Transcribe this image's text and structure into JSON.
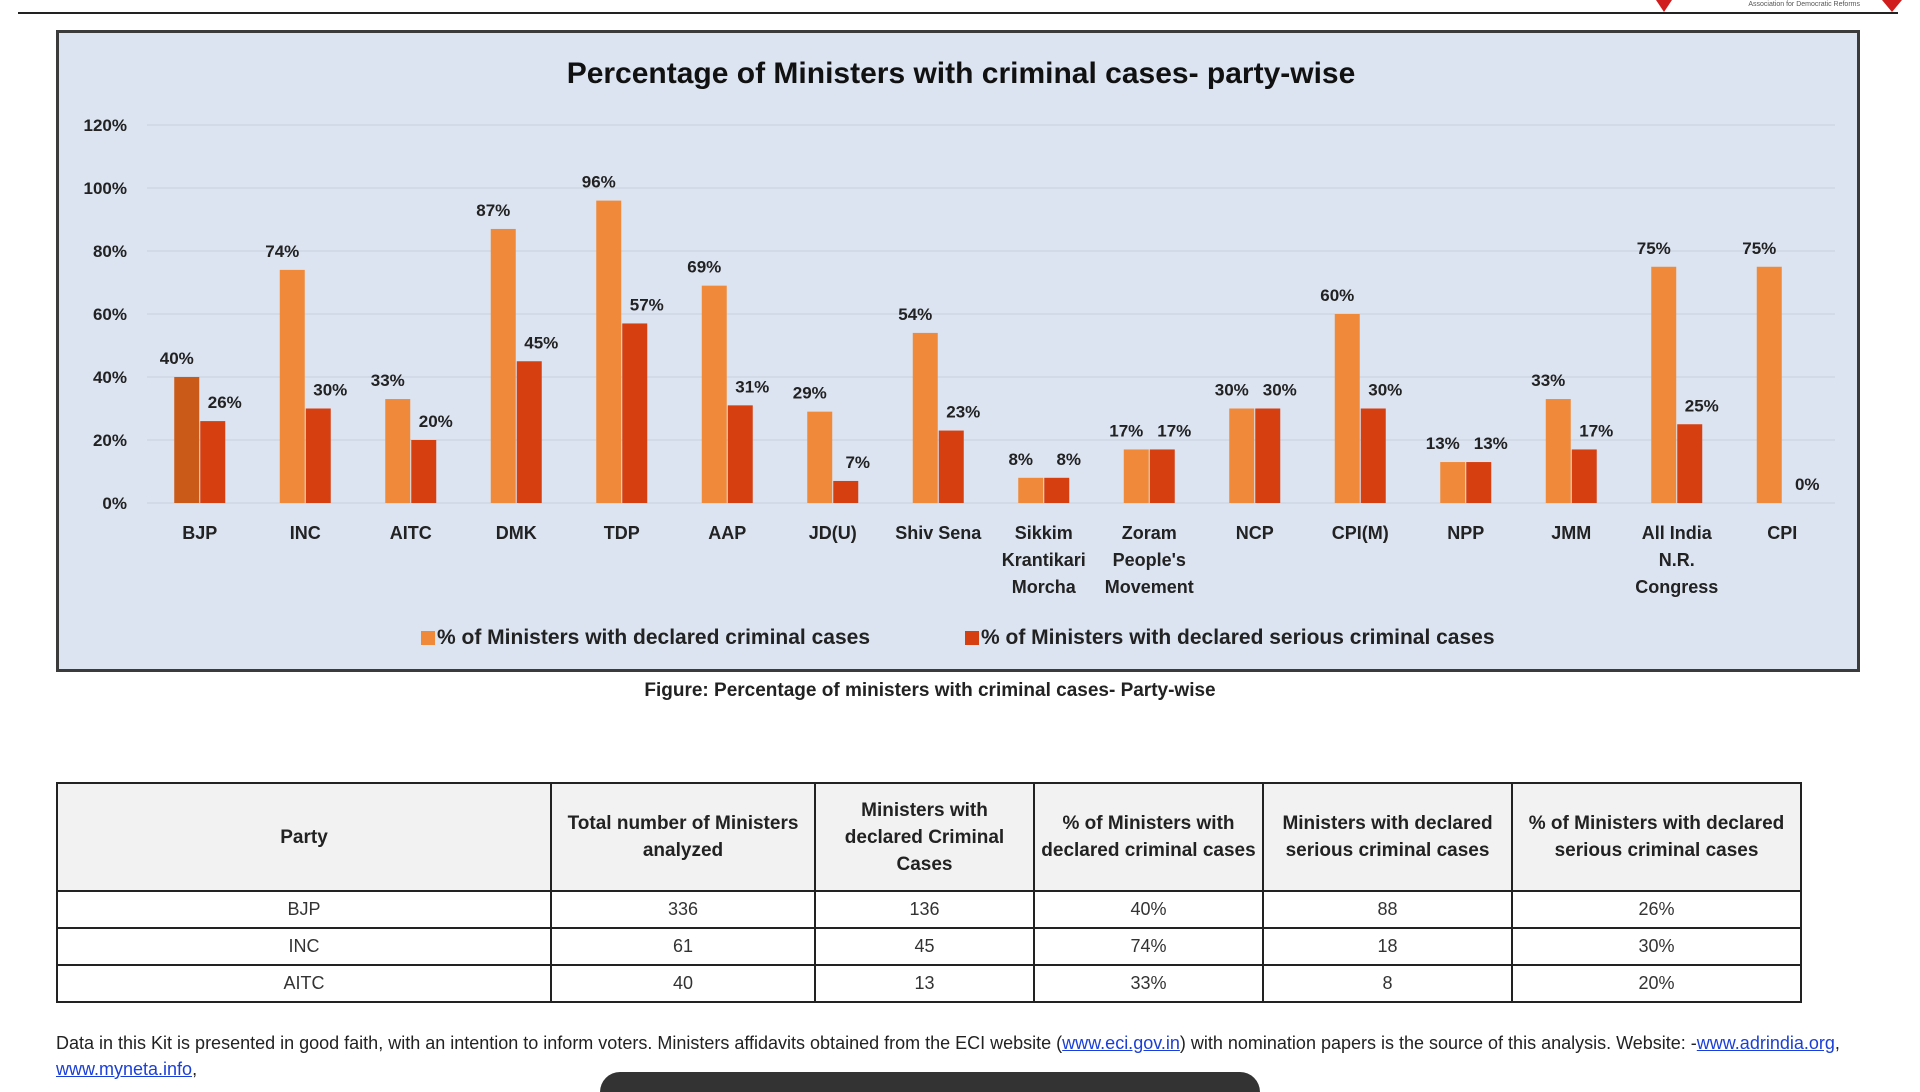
{
  "logo": {
    "text": "Association for Democratic Reforms"
  },
  "chart_data": {
    "type": "bar",
    "title": "Percentage of Ministers with criminal cases- party-wise",
    "categories": [
      "BJP",
      "INC",
      "AITC",
      "DMK",
      "TDP",
      "AAP",
      "JD(U)",
      "Shiv Sena",
      "Sikkim Krantikari Morcha",
      "Zoram People's Movement",
      "NCP",
      "CPI(M)",
      "NPP",
      "JMM",
      "All India N.R. Congress",
      "CPI"
    ],
    "category_lines": [
      [
        "BJP"
      ],
      [
        "INC"
      ],
      [
        "AITC"
      ],
      [
        "DMK"
      ],
      [
        "TDP"
      ],
      [
        "AAP"
      ],
      [
        "JD(U)"
      ],
      [
        "Shiv Sena"
      ],
      [
        "Sikkim",
        "Krantikari",
        "Morcha"
      ],
      [
        "Zoram",
        "People's",
        "Movement"
      ],
      [
        "NCP"
      ],
      [
        "CPI(M)"
      ],
      [
        "NPP"
      ],
      [
        "JMM"
      ],
      [
        "All India",
        "N.R.",
        "Congress"
      ],
      [
        "CPI"
      ]
    ],
    "series": [
      {
        "name": "% of Ministers with declared criminal cases",
        "values": [
          40,
          74,
          33,
          87,
          96,
          69,
          29,
          54,
          8,
          17,
          30,
          60,
          13,
          33,
          75,
          75
        ],
        "color": "#f0893a"
      },
      {
        "name": "% of Ministers with declared serious criminal cases",
        "values": [
          26,
          30,
          20,
          45,
          57,
          31,
          7,
          23,
          8,
          17,
          30,
          30,
          13,
          17,
          25,
          0
        ],
        "color": "#d64010"
      }
    ],
    "highlight_color": "#c95a17",
    "yticks": [
      "0%",
      "20%",
      "40%",
      "60%",
      "80%",
      "100%",
      "120%"
    ],
    "ylim": [
      0,
      120
    ],
    "value_suffix": "%",
    "grid": true,
    "legend_position": "bottom"
  },
  "caption": "Figure: Percentage of ministers with criminal cases- Party-wise",
  "table": {
    "headers": [
      "Party",
      "Total number of Ministers analyzed",
      "Ministers with declared Criminal Cases",
      "% of Ministers with declared criminal cases",
      "Ministers with declared serious criminal cases",
      "% of Ministers with declared serious criminal cases"
    ],
    "rows": [
      [
        "BJP",
        "336",
        "136",
        "40%",
        "88",
        "26%"
      ],
      [
        "INC",
        "61",
        "45",
        "74%",
        "18",
        "30%"
      ],
      [
        "AITC",
        "40",
        "13",
        "33%",
        "8",
        "20%"
      ]
    ]
  },
  "footnote": {
    "text1": "Data in this Kit is presented in good faith, with an intention to inform voters. Ministers affidavits obtained from the ECI website (",
    "link1": "www.eci.gov.in",
    "text2": ") with nomination papers is the source of this analysis.  Website: -",
    "link2": "www.adrindia.org",
    "sep": ", ",
    "link3": "www.myneta.info",
    "end": ","
  }
}
